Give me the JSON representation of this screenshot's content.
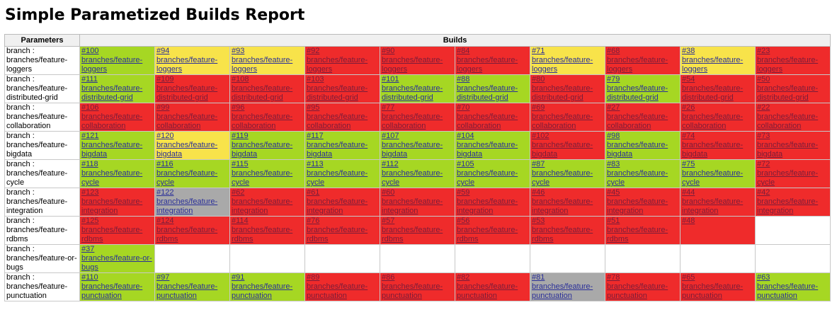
{
  "title": "Simple Parametized Builds Report",
  "headers": {
    "parameters": "Parameters",
    "builds": "Builds"
  },
  "colors": {
    "success": "#a6d723",
    "unstable": "#f8e34a",
    "failure": "#ef2b2b",
    "aborted": "#a9a9a9"
  },
  "rows": [
    {
      "param": "branch : branches/feature-loggers",
      "builds": [
        {
          "num": "#100",
          "branch": "branches/feature-loggers",
          "status": "success"
        },
        {
          "num": "#94",
          "branch": "branches/feature-loggers",
          "status": "unstable"
        },
        {
          "num": "#93",
          "branch": "branches/feature-loggers",
          "status": "unstable"
        },
        {
          "num": "#92",
          "branch": "branches/feature-loggers",
          "status": "failure"
        },
        {
          "num": "#90",
          "branch": "branches/feature-loggers",
          "status": "failure"
        },
        {
          "num": "#84",
          "branch": "branches/feature-loggers",
          "status": "failure"
        },
        {
          "num": "#71",
          "branch": "branches/feature-loggers",
          "status": "unstable"
        },
        {
          "num": "#68",
          "branch": "branches/feature-loggers",
          "status": "failure"
        },
        {
          "num": "#38",
          "branch": "branches/feature-loggers",
          "status": "unstable"
        },
        {
          "num": "#23",
          "branch": "branches/feature-loggers",
          "status": "failure"
        }
      ]
    },
    {
      "param": "branch : branches/feature-distributed-grid",
      "builds": [
        {
          "num": "#111",
          "branch": "branches/feature-distributed-grid",
          "status": "success"
        },
        {
          "num": "#109",
          "branch": "branches/feature-distributed-grid",
          "status": "failure"
        },
        {
          "num": "#108",
          "branch": "branches/feature-distributed-grid",
          "status": "failure"
        },
        {
          "num": "#103",
          "branch": "branches/feature-distributed-grid",
          "status": "failure"
        },
        {
          "num": "#101",
          "branch": "branches/feature-distributed-grid",
          "status": "success"
        },
        {
          "num": "#88",
          "branch": "branches/feature-distributed-grid",
          "status": "success"
        },
        {
          "num": "#80",
          "branch": "branches/feature-distributed-grid",
          "status": "failure"
        },
        {
          "num": "#79",
          "branch": "branches/feature-distributed-grid",
          "status": "success"
        },
        {
          "num": "#54",
          "branch": "branches/feature-distributed-grid",
          "status": "failure"
        },
        {
          "num": "#50",
          "branch": "branches/feature-distributed-grid",
          "status": "failure"
        }
      ]
    },
    {
      "param": "branch : branches/feature-collaboration",
      "builds": [
        {
          "num": "#106",
          "branch": "branches/feature-collaboration",
          "status": "failure"
        },
        {
          "num": "#99",
          "branch": "branches/feature-collaboration",
          "status": "failure"
        },
        {
          "num": "#96",
          "branch": "branches/feature-collaboration",
          "status": "failure"
        },
        {
          "num": "#95",
          "branch": "branches/feature-collaboration",
          "status": "failure"
        },
        {
          "num": "#77",
          "branch": "branches/feature-collaboration",
          "status": "failure"
        },
        {
          "num": "#70",
          "branch": "branches/feature-collaboration",
          "status": "failure"
        },
        {
          "num": "#69",
          "branch": "branches/feature-collaboration",
          "status": "failure"
        },
        {
          "num": "#27",
          "branch": "branches/feature-collaboration",
          "status": "failure"
        },
        {
          "num": "#26",
          "branch": "branches/feature-collaboration",
          "status": "failure"
        },
        {
          "num": "#22",
          "branch": "branches/feature-collaboration",
          "status": "failure"
        }
      ]
    },
    {
      "param": "branch : branches/feature-bigdata",
      "builds": [
        {
          "num": "#121",
          "branch": "branches/feature-bigdata",
          "status": "success"
        },
        {
          "num": "#120",
          "branch": "branches/feature-bigdata",
          "status": "unstable"
        },
        {
          "num": "#119",
          "branch": "branches/feature-bigdata",
          "status": "success"
        },
        {
          "num": "#117",
          "branch": "branches/feature-bigdata",
          "status": "success"
        },
        {
          "num": "#107",
          "branch": "branches/feature-bigdata",
          "status": "success"
        },
        {
          "num": "#104",
          "branch": "branches/feature-bigdata",
          "status": "success"
        },
        {
          "num": "#102",
          "branch": "branches/feature-bigdata",
          "status": "failure"
        },
        {
          "num": "#98",
          "branch": "branches/feature-bigdata",
          "status": "success"
        },
        {
          "num": "#74",
          "branch": "branches/feature-bigdata",
          "status": "failure"
        },
        {
          "num": "#73",
          "branch": "branches/feature-bigdata",
          "status": "failure"
        }
      ]
    },
    {
      "param": "branch : branches/feature-cycle",
      "builds": [
        {
          "num": "#118",
          "branch": "branches/feature-cycle",
          "status": "success"
        },
        {
          "num": "#116",
          "branch": "branches/feature-cycle",
          "status": "success"
        },
        {
          "num": "#115",
          "branch": "branches/feature-cycle",
          "status": "success"
        },
        {
          "num": "#113",
          "branch": "branches/feature-cycle",
          "status": "success"
        },
        {
          "num": "#112",
          "branch": "branches/feature-cycle",
          "status": "success"
        },
        {
          "num": "#105",
          "branch": "branches/feature-cycle",
          "status": "success"
        },
        {
          "num": "#87",
          "branch": "branches/feature-cycle",
          "status": "success"
        },
        {
          "num": "#83",
          "branch": "branches/feature-cycle",
          "status": "success"
        },
        {
          "num": "#75",
          "branch": "branches/feature-cycle",
          "status": "success"
        },
        {
          "num": "#72",
          "branch": "branches/feature-cycle",
          "status": "failure"
        }
      ]
    },
    {
      "param": "branch : branches/feature-integration",
      "builds": [
        {
          "num": "#123",
          "branch": "branches/feature-integration",
          "status": "failure"
        },
        {
          "num": "#122",
          "branch": "branches/feature-integration",
          "status": "aborted"
        },
        {
          "num": "#62",
          "branch": "branches/feature-integration",
          "status": "failure"
        },
        {
          "num": "#61",
          "branch": "branches/feature-integration",
          "status": "failure"
        },
        {
          "num": "#60",
          "branch": "branches/feature-integration",
          "status": "failure"
        },
        {
          "num": "#59",
          "branch": "branches/feature-integration",
          "status": "failure"
        },
        {
          "num": "#46",
          "branch": "branches/feature-integration",
          "status": "failure"
        },
        {
          "num": "#45",
          "branch": "branches/feature-integration",
          "status": "failure"
        },
        {
          "num": "#44",
          "branch": "branches/feature-integration",
          "status": "failure"
        },
        {
          "num": "#42",
          "branch": "branches/feature-integration",
          "status": "failure"
        }
      ]
    },
    {
      "param": "branch : branches/feature-rdbms",
      "builds": [
        {
          "num": "#125",
          "branch": "branches/feature-rdbms",
          "status": "failure"
        },
        {
          "num": "#124",
          "branch": "branches/feature-rdbms",
          "status": "failure"
        },
        {
          "num": "#114",
          "branch": "branches/feature-rdbms",
          "status": "failure"
        },
        {
          "num": "#76",
          "branch": "branches/feature-rdbms",
          "status": "failure"
        },
        {
          "num": "#57",
          "branch": "branches/feature-rdbms",
          "status": "failure"
        },
        {
          "num": "#56",
          "branch": "branches/feature-rdbms",
          "status": "failure"
        },
        {
          "num": "#53",
          "branch": "branches/feature-rdbms",
          "status": "failure"
        },
        {
          "num": "#51",
          "branch": "branches/feature-rdbms",
          "status": "failure"
        },
        {
          "num": "#48",
          "branch": "",
          "status": "failure"
        }
      ]
    },
    {
      "param": "branch : branches/feature-or-bugs",
      "builds": [
        {
          "num": "#37",
          "branch": "branches/feature-or-bugs",
          "status": "success"
        }
      ]
    },
    {
      "param": "branch : branches/feature-punctuation",
      "builds": [
        {
          "num": "#110",
          "branch": "branches/feature-punctuation",
          "status": "success"
        },
        {
          "num": "#97",
          "branch": "branches/feature-punctuation",
          "status": "success"
        },
        {
          "num": "#91",
          "branch": "branches/feature-punctuation",
          "status": "success"
        },
        {
          "num": "#89",
          "branch": "branches/feature-punctuation",
          "status": "failure"
        },
        {
          "num": "#86",
          "branch": "branches/feature-punctuation",
          "status": "failure"
        },
        {
          "num": "#82",
          "branch": "branches/feature-punctuation",
          "status": "failure"
        },
        {
          "num": "#81",
          "branch": "branches/feature-punctuation",
          "status": "aborted"
        },
        {
          "num": "#78",
          "branch": "branches/feature-punctuation",
          "status": "failure"
        },
        {
          "num": "#65",
          "branch": "branches/feature-punctuation",
          "status": "failure"
        },
        {
          "num": "#63",
          "branch": "branches/feature-punctuation",
          "status": "success"
        }
      ]
    }
  ]
}
